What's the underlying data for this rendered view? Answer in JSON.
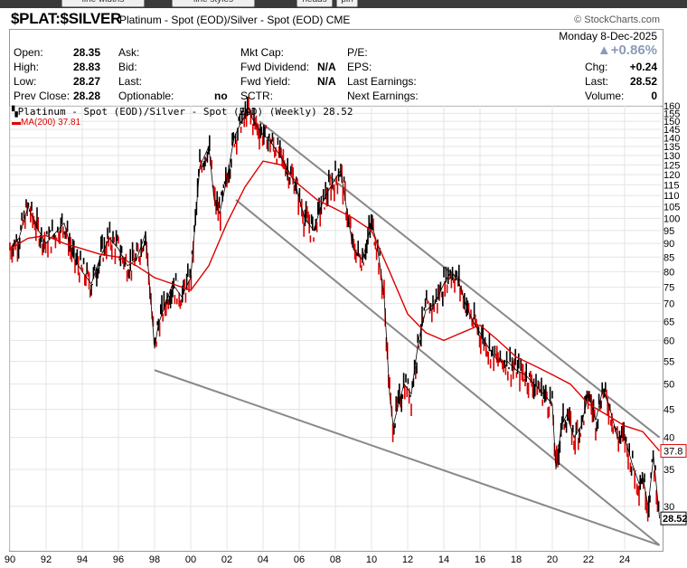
{
  "toolbar": {
    "buttons": [
      {
        "label": "line widths"
      },
      {
        "label": "line styles"
      },
      {
        "label": "heads"
      },
      {
        "label": "pin"
      }
    ]
  },
  "header": {
    "symbol": "$PLAT:$SILVER",
    "description": "Platinum - Spot (EOD)/Silver - Spot (EOD) CME",
    "brand": "© StockCharts.com"
  },
  "info": {
    "date": "Monday  8-Dec-2025",
    "change_pct": "▲+0.86%",
    "rows": [
      {
        "a_lbl": "Open:",
        "a_val": "28.35",
        "b_lbl": "Ask:",
        "b_val": "",
        "c_lbl": "Mkt Cap:",
        "c_val": "",
        "d_lbl": "P/E:",
        "d_val": "",
        "e_lbl": "",
        "e_val": ""
      },
      {
        "a_lbl": "High:",
        "a_val": "28.83",
        "b_lbl": "Bid:",
        "b_val": "",
        "c_lbl": "Fwd Dividend:",
        "c_val": "N/A",
        "d_lbl": "EPS:",
        "d_val": "",
        "e_lbl": "Chg:",
        "e_val": "+0.24"
      },
      {
        "a_lbl": "Low:",
        "a_val": "28.27",
        "b_lbl": "Last:",
        "b_val": "",
        "c_lbl": "Fwd Yield:",
        "c_val": "N/A",
        "d_lbl": "Last Earnings:",
        "d_val": "",
        "e_lbl": "Last:",
        "e_val": "28.52"
      },
      {
        "a_lbl": "Prev Close:",
        "a_val": "28.28",
        "b_lbl": "Optionable:",
        "b_val": "no",
        "c_lbl": "SCTR:",
        "c_val": "",
        "d_lbl": "Next Earnings:",
        "d_val": "",
        "e_lbl": "Volume:",
        "e_val": "0"
      }
    ]
  },
  "legend": {
    "main": "Platinum - Spot (EOD)/Silver - Spot (EOD) (Weekly) 28.52",
    "ma": "MA(200) 37.81"
  },
  "colors": {
    "price": "#000000",
    "down": "#dd0000",
    "ma": "#dd0000",
    "trendline": "#888888",
    "grid": "#e4e4e4"
  },
  "chart_data": {
    "type": "line",
    "title": "Platinum - Spot (EOD)/Silver - Spot (EOD) (Weekly)",
    "scale": "log",
    "ylim": [
      25,
      160
    ],
    "xlim": [
      1990,
      2026
    ],
    "y_ticks": [
      "160",
      "155",
      "150",
      "145",
      "140",
      "135",
      "130",
      "125",
      "120",
      "115",
      "110",
      "105",
      "100",
      "95",
      "90",
      "85",
      "80",
      "75",
      "70",
      "65",
      "60",
      "55",
      "50",
      "45",
      "40",
      "35",
      "30"
    ],
    "x_ticks": [
      "90",
      "92",
      "94",
      "96",
      "98",
      "00",
      "02",
      "04",
      "06",
      "08",
      "10",
      "12",
      "14",
      "16",
      "18",
      "20",
      "22",
      "24"
    ],
    "last_value": "28.52",
    "ma_value": "37.8",
    "series": [
      {
        "name": "Platinum - Spot (EOD)/Silver - Spot (EOD)",
        "x": [
          1990.0,
          1990.5,
          1991.0,
          1991.5,
          1992.0,
          1992.5,
          1993.0,
          1993.5,
          1994.0,
          1994.5,
          1995.0,
          1995.5,
          1996.0,
          1996.5,
          1997.0,
          1997.5,
          1998.0,
          1998.2,
          1998.6,
          1999.0,
          1999.5,
          2000.0,
          2000.5,
          2001.0,
          2001.3,
          2001.6,
          2002.0,
          2002.4,
          2002.8,
          2003.2,
          2003.6,
          2004.0,
          2004.4,
          2004.8,
          2005.3,
          2005.8,
          2006.3,
          2006.8,
          2007.2,
          2007.6,
          2008.0,
          2008.3,
          2008.7,
          2009.0,
          2009.5,
          2010.0,
          2010.3,
          2010.7,
          2011.0,
          2011.2,
          2011.5,
          2011.8,
          2012.2,
          2012.6,
          2013.0,
          2013.5,
          2014.0,
          2014.4,
          2014.8,
          2015.2,
          2015.6,
          2016.0,
          2016.5,
          2017.0,
          2017.5,
          2018.0,
          2018.5,
          2019.0,
          2019.5,
          2020.0,
          2020.2,
          2020.5,
          2020.8,
          2021.2,
          2021.6,
          2022.0,
          2022.4,
          2022.8,
          2023.2,
          2023.6,
          2024.0,
          2024.4,
          2024.8,
          2025.0,
          2025.3,
          2025.6,
          2025.93
        ],
        "y": [
          88,
          92,
          105,
          96,
          90,
          94,
          98,
          85,
          80,
          76,
          85,
          92,
          88,
          82,
          84,
          94,
          58,
          64,
          70,
          76,
          72,
          78,
          124,
          135,
          108,
          102,
          118,
          140,
          150,
          156,
          148,
          142,
          138,
          132,
          124,
          115,
          100,
          95,
          105,
          112,
          118,
          122,
          100,
          88,
          84,
          98,
          90,
          72,
          48,
          42,
          46,
          50,
          48,
          60,
          68,
          70,
          76,
          80,
          77,
          70,
          65,
          62,
          58,
          55,
          55,
          53,
          52,
          50,
          48,
          46,
          35,
          42,
          44,
          40,
          42,
          48,
          43,
          49,
          45,
          40,
          40,
          36,
          33,
          34,
          30,
          37,
          28.52
        ]
      },
      {
        "name": "MA(200)",
        "x": [
          1990.0,
          1991.0,
          1992.0,
          1993.0,
          1994.0,
          1995.0,
          1996.0,
          1997.0,
          1998.0,
          1999.0,
          2000.0,
          2001.0,
          2002.0,
          2003.0,
          2004.0,
          2005.0,
          2006.0,
          2007.0,
          2008.0,
          2009.0,
          2010.0,
          2011.0,
          2012.0,
          2013.0,
          2014.0,
          2015.0,
          2016.0,
          2017.0,
          2018.0,
          2019.0,
          2020.0,
          2021.0,
          2022.0,
          2023.0,
          2024.0,
          2025.0,
          2025.93
        ],
        "y": [
          88,
          92,
          93,
          90,
          88,
          86,
          85,
          82,
          78,
          76,
          74,
          82,
          98,
          114,
          127,
          125,
          115,
          108,
          104,
          100,
          95,
          80,
          67,
          62,
          60,
          62,
          64,
          60,
          56,
          54,
          52,
          50,
          46,
          44,
          42,
          41,
          37.81
        ]
      }
    ],
    "trendlines": [
      {
        "x": [
          2003.8,
          2025.93
        ],
        "y": [
          150,
          40
        ]
      },
      {
        "x": [
          2002.5,
          2025.93
        ],
        "y": [
          108,
          25.5
        ]
      },
      {
        "x": [
          1998.0,
          2025.93
        ],
        "y": [
          53,
          25.5
        ]
      }
    ]
  }
}
